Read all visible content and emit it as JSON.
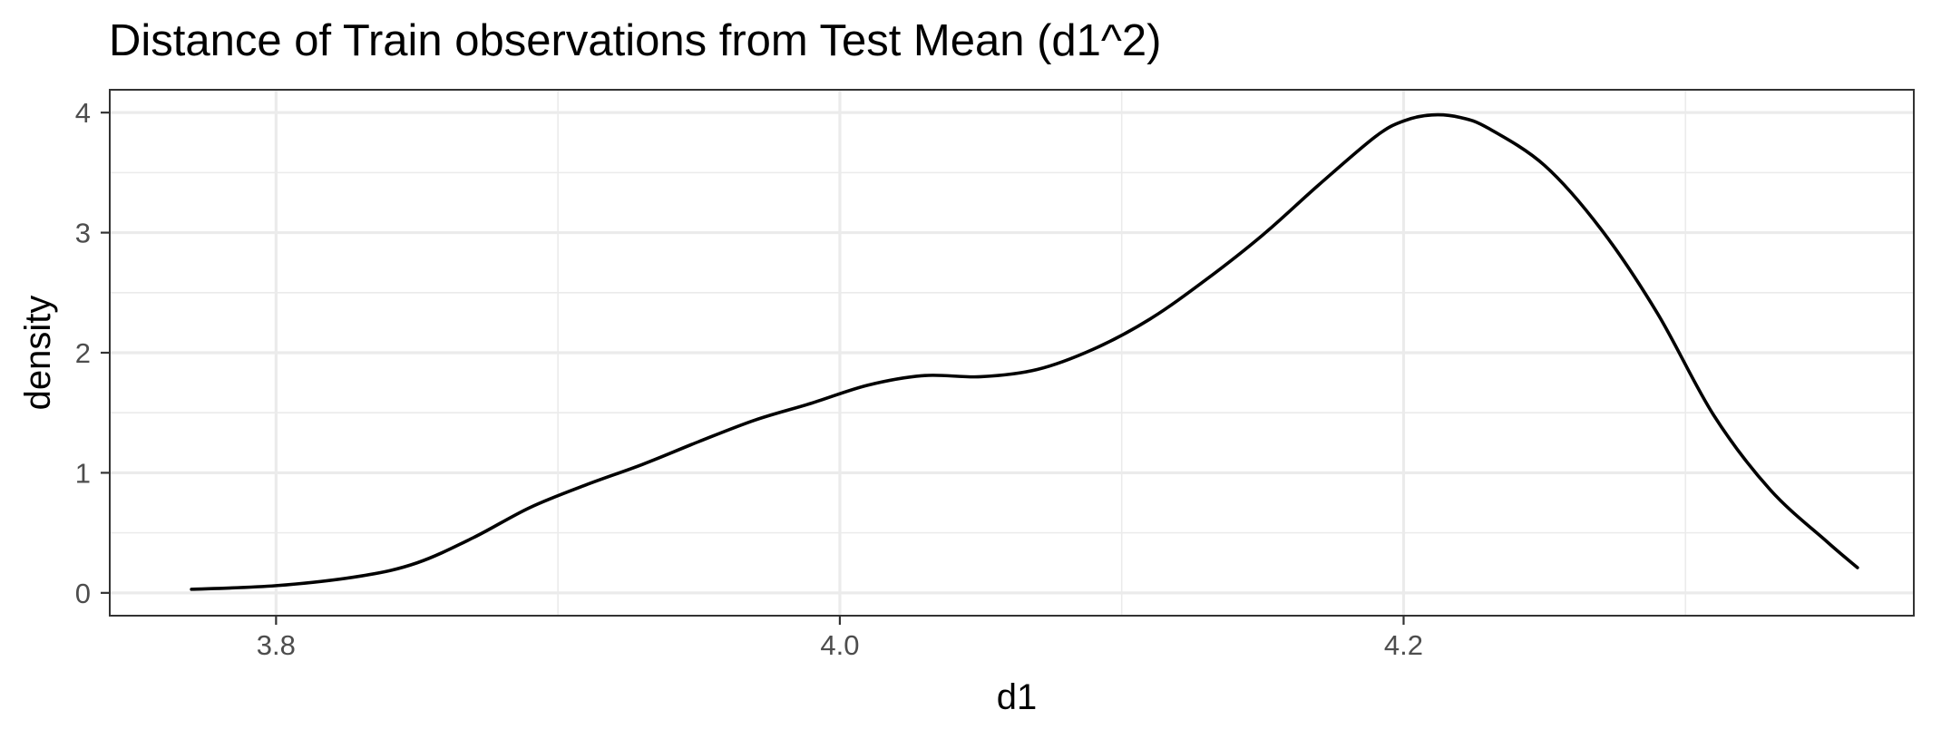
{
  "chart_data": {
    "type": "line",
    "title": "Distance of Train observations from Test Mean (d1^2)",
    "xlabel": "d1",
    "ylabel": "density",
    "xlim": [
      3.741,
      4.381
    ],
    "ylim": [
      -0.19,
      4.19
    ],
    "x_ticks": [
      3.8,
      4.0,
      4.2
    ],
    "x_tick_labels": [
      "3.8",
      "4.0",
      "4.2"
    ],
    "x_minor_ticks": [
      3.9,
      4.1,
      4.3
    ],
    "y_ticks": [
      0,
      1,
      2,
      3,
      4
    ],
    "y_tick_labels": [
      "0",
      "1",
      "2",
      "3",
      "4"
    ],
    "y_minor_ticks": [
      0.5,
      1.5,
      2.5,
      3.5
    ],
    "grid": true,
    "legend": "none",
    "line_color": "#000000",
    "series": [
      {
        "x": [
          3.77,
          3.8,
          3.83,
          3.85,
          3.87,
          3.89,
          3.91,
          3.93,
          3.95,
          3.97,
          3.99,
          4.01,
          4.03,
          4.05,
          4.07,
          4.09,
          4.11,
          4.13,
          4.15,
          4.17,
          4.19,
          4.2,
          4.21,
          4.22,
          4.23,
          4.25,
          4.27,
          4.29,
          4.31,
          4.33,
          4.35,
          4.361
        ],
        "values": [
          0.03,
          0.06,
          0.14,
          0.25,
          0.46,
          0.71,
          0.9,
          1.07,
          1.26,
          1.44,
          1.58,
          1.73,
          1.81,
          1.8,
          1.86,
          2.03,
          2.28,
          2.61,
          2.98,
          3.4,
          3.8,
          3.93,
          3.98,
          3.96,
          3.87,
          3.56,
          3.03,
          2.33,
          1.48,
          0.86,
          0.43,
          0.21
        ]
      }
    ]
  }
}
